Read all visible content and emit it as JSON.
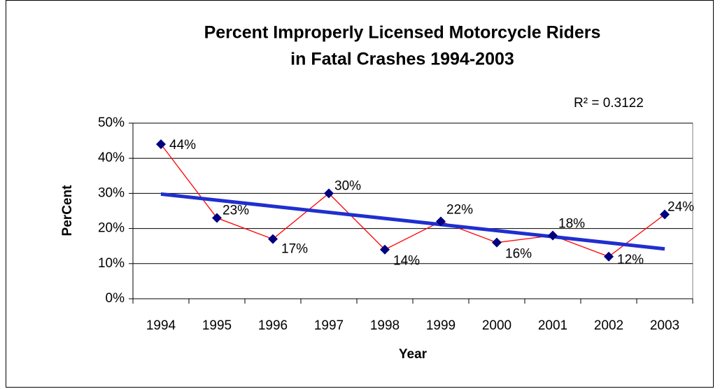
{
  "chart_data": {
    "type": "line",
    "title": [
      "Percent Improperly Licensed Motorcycle Riders",
      "in Fatal Crashes 1994-2003"
    ],
    "annotation": "R² = 0.3122",
    "x_label": "Year",
    "y_label": "PerCent",
    "categories": [
      "1994",
      "1995",
      "1996",
      "1997",
      "1998",
      "1999",
      "2000",
      "2001",
      "2002",
      "2003"
    ],
    "series": [
      {
        "name": "Percent",
        "color": "#ff0000",
        "marker_color": "#000080",
        "values": [
          44,
          23,
          17,
          30,
          14,
          22,
          16,
          18,
          12,
          24
        ],
        "value_labels": [
          "44%",
          "23%",
          "17%",
          "30%",
          "14%",
          "22%",
          "16%",
          "18%",
          "12%",
          "24%"
        ]
      }
    ],
    "trendline": {
      "type": "linear",
      "color": "#1f2fcf"
    },
    "ylim": [
      0,
      50
    ],
    "yticks": [
      {
        "value": 0,
        "label": "0%"
      },
      {
        "value": 10,
        "label": "10%"
      },
      {
        "value": 20,
        "label": "20%"
      },
      {
        "value": 30,
        "label": "30%"
      },
      {
        "value": 40,
        "label": "40%"
      },
      {
        "value": 50,
        "label": "50%"
      }
    ],
    "grid": true
  }
}
